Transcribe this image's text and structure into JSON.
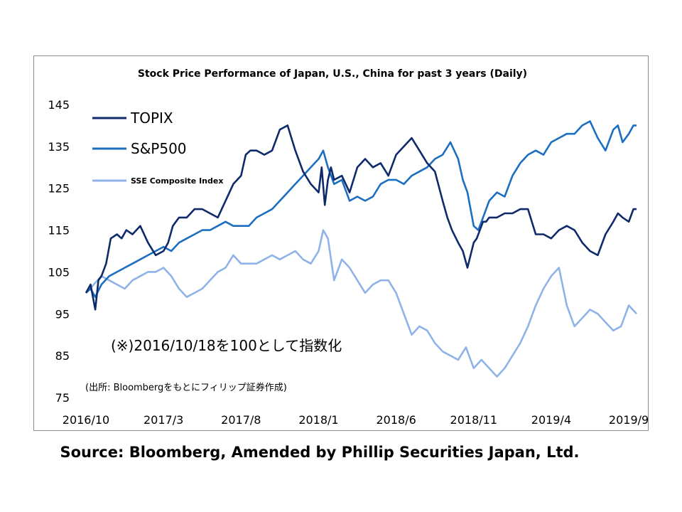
{
  "chart_data": {
    "type": "line",
    "title": "Stock Price Performance of Japan, U.S., China for past 3 years (Daily)",
    "xlabel": "",
    "ylabel": "",
    "ylim": [
      75,
      145
    ],
    "yticks": [
      145,
      135,
      125,
      115,
      105,
      95,
      85,
      75
    ],
    "xlim": [
      0,
      35.5
    ],
    "xticks": [
      {
        "label": "2016/10",
        "x": 0
      },
      {
        "label": "2017/3",
        "x": 5
      },
      {
        "label": "2017/8",
        "x": 10
      },
      {
        "label": "2018/1",
        "x": 15
      },
      {
        "label": "2018/6",
        "x": 20
      },
      {
        "label": "2018/11",
        "x": 25
      },
      {
        "label": "2019/4",
        "x": 30
      },
      {
        "label": "2019/9",
        "x": 35
      }
    ],
    "grid": false,
    "legend_placement": "top-left",
    "annotation": "(※)2016/10/18を100として指数化",
    "source_in_chart": "(出所: Bloombergをもとにフィリップ証券作成)",
    "series": [
      {
        "name": "TOPIX",
        "color": "#0f2a6b",
        "x": [
          0,
          0.3,
          0.6,
          0.8,
          1,
          1.3,
          1.6,
          2,
          2.3,
          2.6,
          3,
          3.5,
          4,
          4.5,
          5,
          5.3,
          5.6,
          6,
          6.5,
          7,
          7.5,
          8,
          8.5,
          9,
          9.5,
          10,
          10.3,
          10.6,
          11,
          11.5,
          12,
          12.5,
          13,
          13.5,
          14,
          14.5,
          15,
          15.2,
          15.4,
          15.6,
          15.8,
          16,
          16.5,
          17,
          17.5,
          18,
          18.5,
          19,
          19.5,
          20,
          20.5,
          21,
          21.5,
          22,
          22.5,
          23,
          23.3,
          23.6,
          24,
          24.3,
          24.6,
          25,
          25.2,
          25.4,
          25.6,
          25.8,
          26,
          26.5,
          27,
          27.5,
          28,
          28.5,
          29,
          29.5,
          30,
          30.5,
          31,
          31.5,
          32,
          32.5,
          33,
          33.5,
          34,
          34.3,
          34.6,
          35,
          35.3,
          35.5
        ],
        "values": [
          100,
          102,
          96,
          103,
          104,
          107,
          113,
          114,
          113,
          115,
          114,
          116,
          112,
          109,
          110,
          112,
          116,
          118,
          118,
          120,
          120,
          119,
          118,
          122,
          126,
          128,
          133,
          134,
          134,
          133,
          134,
          139,
          140,
          134,
          129,
          126,
          124,
          130,
          121,
          127,
          130,
          127,
          128,
          124,
          130,
          132,
          130,
          131,
          128,
          133,
          135,
          137,
          134,
          131,
          129,
          122,
          118,
          115,
          112,
          110,
          106,
          112,
          113,
          115,
          117,
          117,
          118,
          118,
          119,
          119,
          120,
          120,
          114,
          114,
          113,
          115,
          116,
          115,
          112,
          110,
          109,
          114,
          117,
          119,
          118,
          117,
          120,
          120
        ]
      },
      {
        "name": "S&P500",
        "color": "#1c6fc0",
        "x": [
          0,
          0.3,
          0.6,
          1,
          1.5,
          2,
          2.5,
          3,
          3.5,
          4,
          4.5,
          5,
          5.5,
          6,
          6.5,
          7,
          7.5,
          8,
          8.5,
          9,
          9.5,
          10,
          10.5,
          11,
          11.5,
          12,
          12.5,
          13,
          13.5,
          14,
          14.5,
          15,
          15.3,
          15.6,
          16,
          16.5,
          17,
          17.5,
          18,
          18.5,
          19,
          19.5,
          20,
          20.5,
          21,
          21.5,
          22,
          22.5,
          23,
          23.5,
          24,
          24.3,
          24.6,
          25,
          25.3,
          25.6,
          26,
          26.5,
          27,
          27.5,
          28,
          28.5,
          29,
          29.5,
          30,
          30.5,
          31,
          31.5,
          32,
          32.5,
          33,
          33.5,
          34,
          34.3,
          34.6,
          35,
          35.3,
          35.5
        ],
        "values": [
          100,
          101,
          99,
          102,
          104,
          105,
          106,
          107,
          108,
          109,
          110,
          111,
          110,
          112,
          113,
          114,
          115,
          115,
          116,
          117,
          116,
          116,
          116,
          118,
          119,
          120,
          122,
          124,
          126,
          128,
          130,
          132,
          134,
          130,
          126,
          127,
          122,
          123,
          122,
          123,
          126,
          127,
          127,
          126,
          128,
          129,
          130,
          132,
          133,
          136,
          132,
          127,
          124,
          116,
          115,
          118,
          122,
          124,
          123,
          128,
          131,
          133,
          134,
          133,
          136,
          137,
          138,
          138,
          140,
          141,
          137,
          134,
          139,
          140,
          136,
          138,
          140,
          140
        ]
      },
      {
        "name": "SSE Composite Index",
        "color": "#8fb3e8",
        "x": [
          0,
          0.5,
          1,
          1.5,
          2,
          2.5,
          3,
          3.5,
          4,
          4.5,
          5,
          5.5,
          6,
          6.5,
          7,
          7.5,
          8,
          8.5,
          9,
          9.5,
          10,
          10.5,
          11,
          11.5,
          12,
          12.5,
          13,
          13.5,
          14,
          14.5,
          15,
          15.3,
          15.6,
          16,
          16.5,
          17,
          17.5,
          18,
          18.5,
          19,
          19.5,
          20,
          20.5,
          21,
          21.5,
          22,
          22.5,
          23,
          23.5,
          24,
          24.5,
          25,
          25.5,
          26,
          26.5,
          27,
          27.5,
          28,
          28.5,
          29,
          29.5,
          30,
          30.5,
          31,
          31.5,
          32,
          32.5,
          33,
          33.5,
          34,
          34.5,
          35,
          35.5
        ],
        "values": [
          100,
          102,
          104,
          103,
          102,
          101,
          103,
          104,
          105,
          105,
          106,
          104,
          101,
          99,
          100,
          101,
          103,
          105,
          106,
          109,
          107,
          107,
          107,
          108,
          109,
          108,
          109,
          110,
          108,
          107,
          110,
          115,
          113,
          103,
          108,
          106,
          103,
          100,
          102,
          103,
          103,
          100,
          95,
          90,
          92,
          91,
          88,
          86,
          85,
          84,
          87,
          82,
          84,
          82,
          80,
          82,
          85,
          88,
          92,
          97,
          101,
          104,
          106,
          97,
          92,
          94,
          96,
          95,
          93,
          91,
          92,
          97,
          95
        ]
      }
    ]
  },
  "source_note": "Source: Bloomberg, Amended by Phillip Securities Japan, Ltd."
}
